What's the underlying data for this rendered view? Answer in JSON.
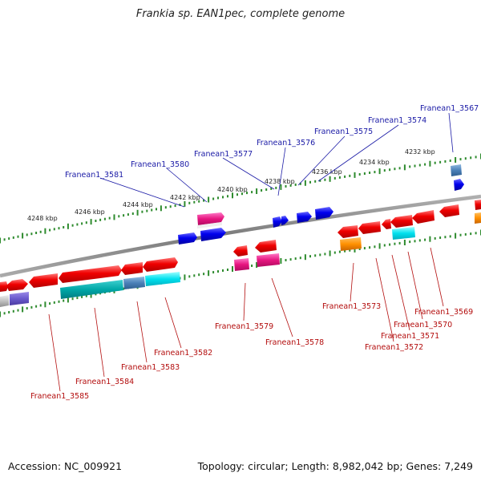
{
  "title": "Frankia sp. EAN1pec, complete genome",
  "footer": {
    "accession": "Accession: NC_009921",
    "topology": "Topology: circular; Length: 8,982,042 bp; Genes: 7,249"
  },
  "colors": {
    "backbone": "#8c8c8c",
    "tick": "#2e8b2e",
    "top_label": "#1a1aa6",
    "bottom_label": "#b30d0d"
  },
  "scale_labels": [
    "4248 kbp",
    "4246 kbp",
    "4244 kbp",
    "4242 kbp",
    "4240 kbp",
    "4238 kbp",
    "4236 kbp",
    "4234 kbp",
    "4232 kbp"
  ],
  "top_genes": [
    "Franean1_3581",
    "Franean1_3580",
    "Franean1_3577",
    "Franean1_3576",
    "Franean1_3575",
    "Franean1_3574",
    "Franean1_3567"
  ],
  "bottom_genes": [
    "Franean1_3585",
    "Franean1_3584",
    "Franean1_3583",
    "Franean1_3582",
    "Franean1_3579",
    "Franean1_3578",
    "Franean1_3573",
    "Franean1_3572",
    "Franean1_3571",
    "Franean1_3570",
    "Franean1_3569"
  ]
}
